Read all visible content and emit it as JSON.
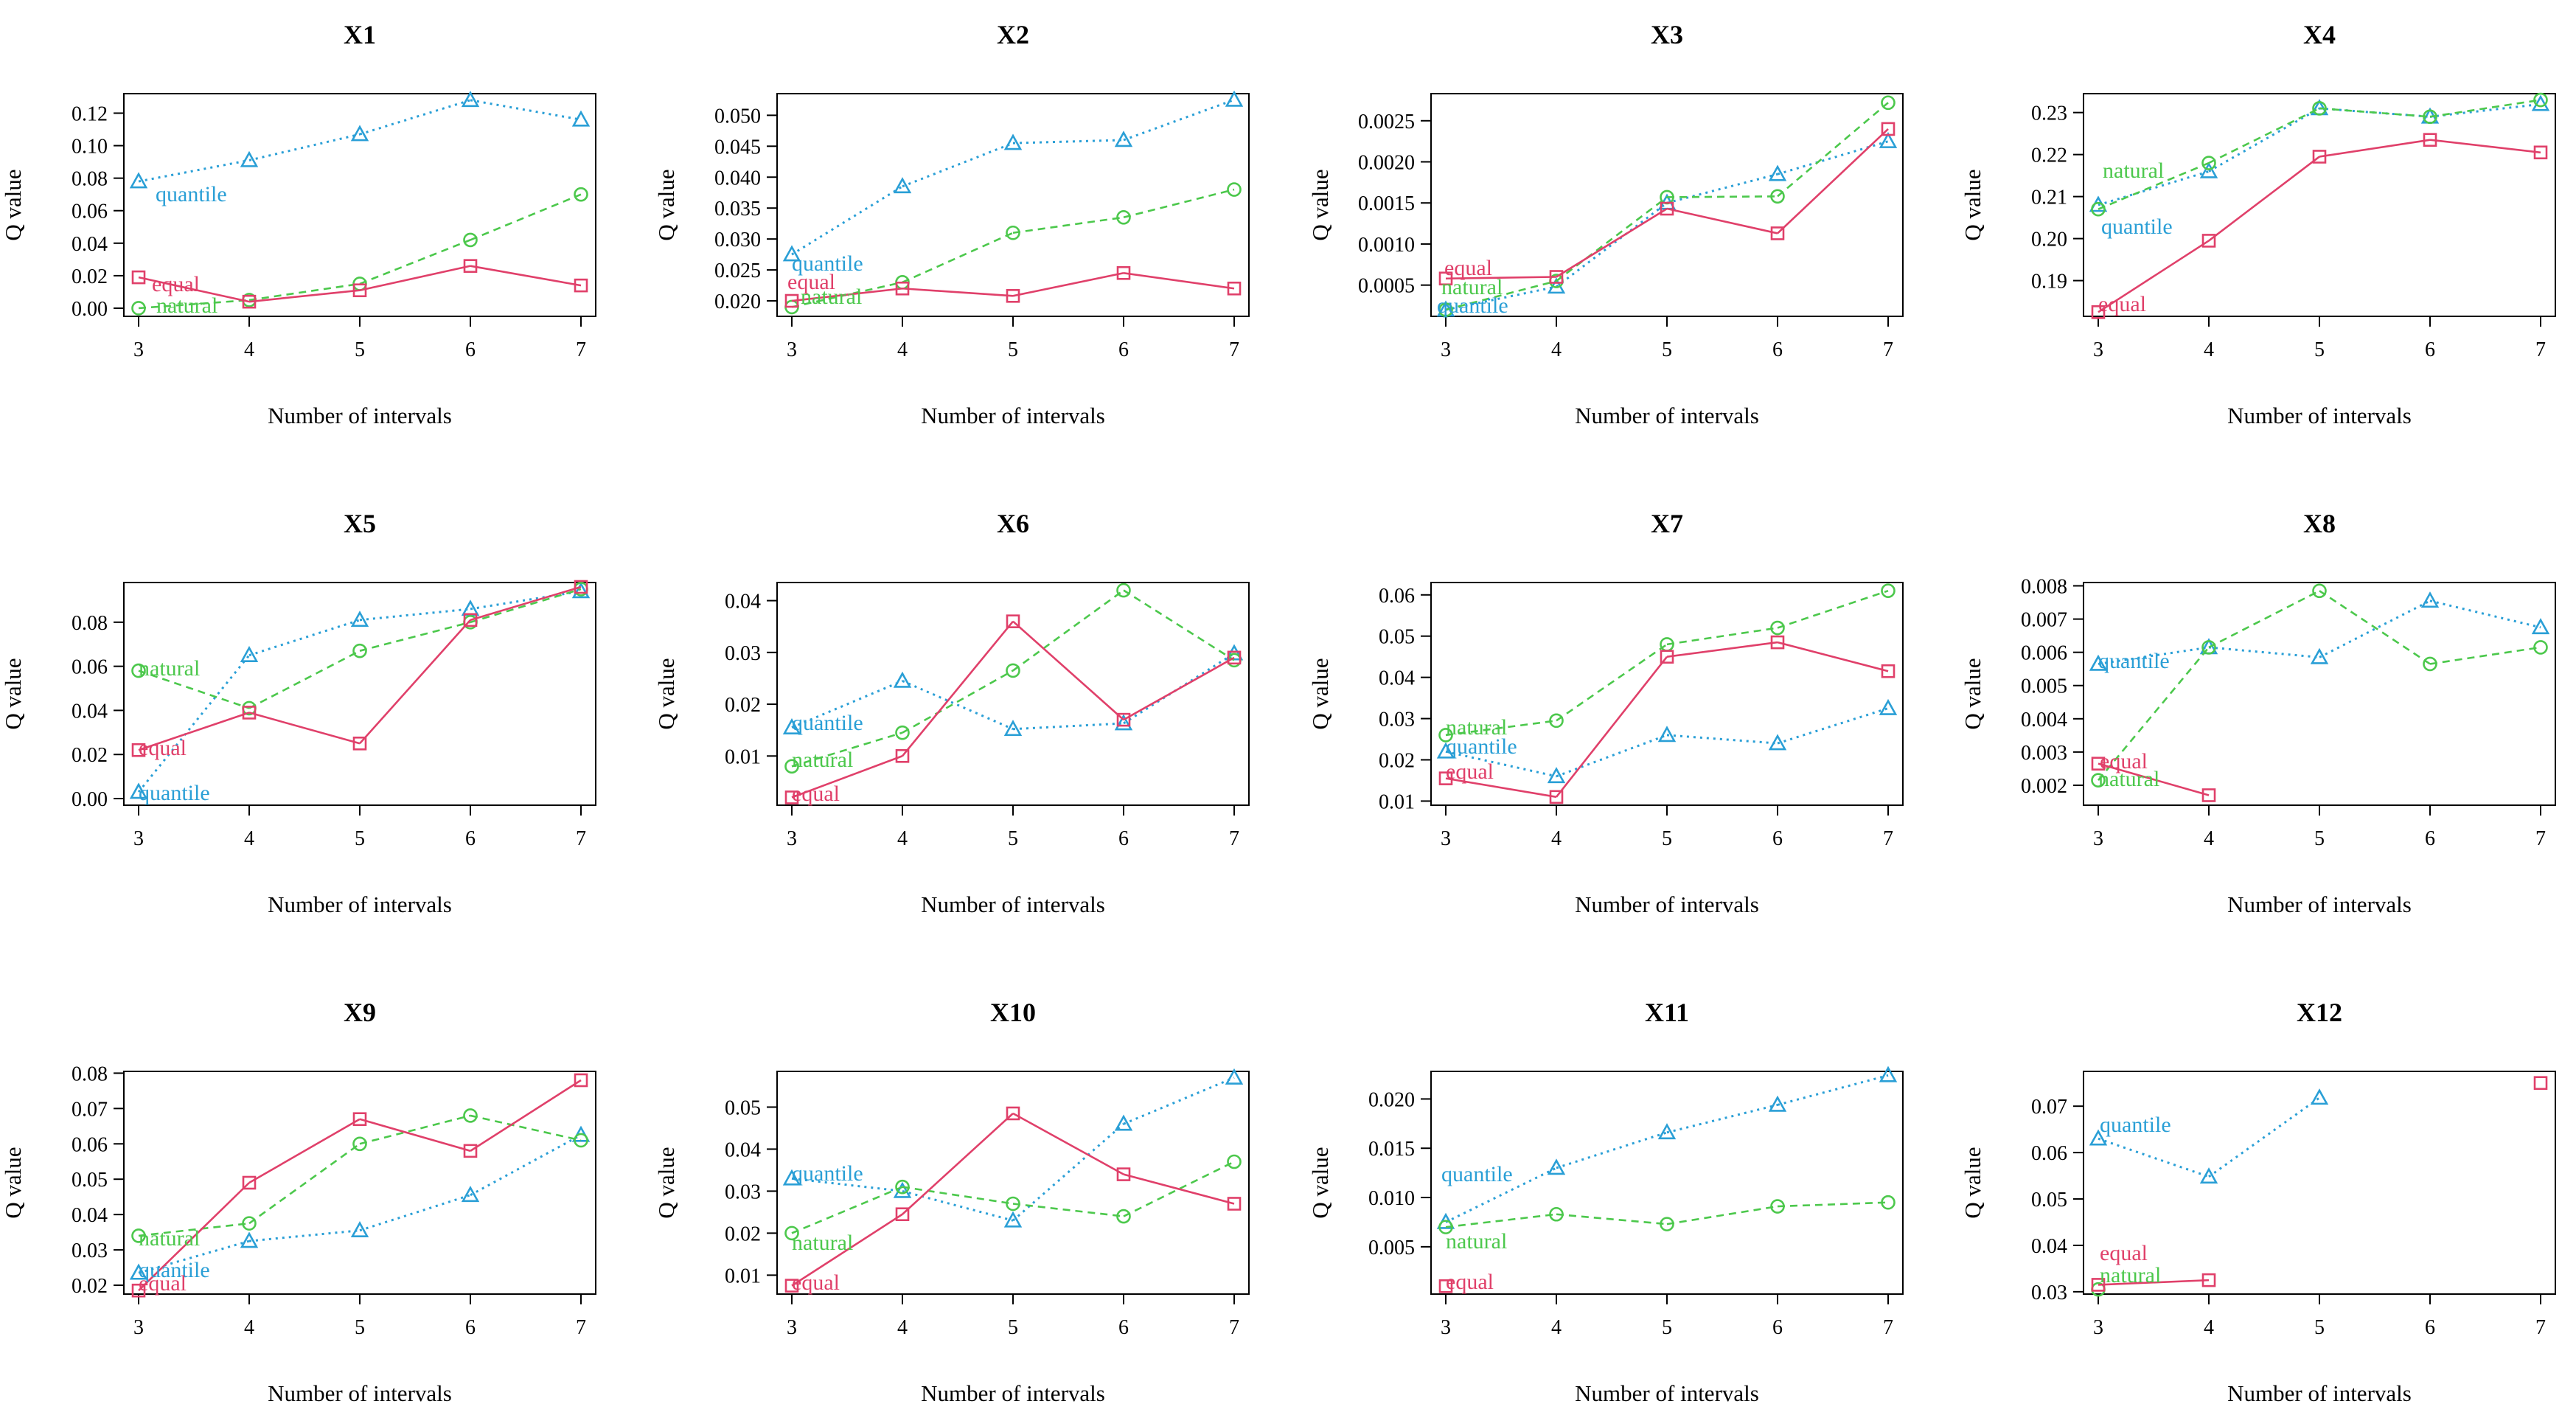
{
  "colors": {
    "equal": "#E0406A",
    "natural": "#4CC84C",
    "quantile": "#2A9FD6"
  },
  "series_names": [
    "equal",
    "natural",
    "quantile"
  ],
  "axis_common": {
    "xlabel": "Number of intervals",
    "ylabel": "Q value",
    "x": [
      3,
      4,
      5,
      6,
      7
    ]
  },
  "chart_data": [
    {
      "type": "line",
      "title": "X1",
      "xlabel": "Number of intervals",
      "ylabel": "Q value",
      "x": [
        3,
        4,
        5,
        6,
        7
      ],
      "ylim": [
        -0.005,
        0.132
      ],
      "yticks": [
        "0.00",
        "0.02",
        "0.04",
        "0.06",
        "0.08",
        "0.10",
        "0.12"
      ],
      "series": [
        {
          "name": "equal",
          "values": [
            0.019,
            0.004,
            0.011,
            0.026,
            0.014
          ]
        },
        {
          "name": "natural",
          "values": [
            0.0,
            0.005,
            0.015,
            0.042,
            0.07
          ]
        },
        {
          "name": "quantile",
          "values": [
            0.078,
            0.091,
            0.107,
            0.128,
            0.116
          ]
        }
      ]
    },
    {
      "type": "line",
      "title": "X2",
      "xlabel": "Number of intervals",
      "ylabel": "Q value",
      "x": [
        3,
        4,
        5,
        6,
        7
      ],
      "ylim": [
        0.0175,
        0.0535
      ],
      "yticks": [
        "0.020",
        "0.025",
        "0.030",
        "0.035",
        "0.040",
        "0.045",
        "0.050"
      ],
      "series": [
        {
          "name": "equal",
          "values": [
            0.02,
            0.022,
            0.0208,
            0.0245,
            0.022
          ]
        },
        {
          "name": "natural",
          "values": [
            0.019,
            0.023,
            0.031,
            0.0335,
            0.038
          ]
        },
        {
          "name": "quantile",
          "values": [
            0.0275,
            0.0385,
            0.0455,
            0.046,
            0.0525
          ]
        }
      ]
    },
    {
      "type": "line",
      "title": "X3",
      "xlabel": "Number of intervals",
      "ylabel": "Q value",
      "x": [
        3,
        4,
        5,
        6,
        7
      ],
      "ylim": [
        0.00012,
        0.00283
      ],
      "yticks": [
        "0.0005",
        "0.0010",
        "0.0015",
        "0.0020",
        "0.0025"
      ],
      "series": [
        {
          "name": "equal",
          "values": [
            0.00058,
            0.0006,
            0.00143,
            0.00113,
            0.0024
          ]
        },
        {
          "name": "natural",
          "values": [
            0.0002,
            0.00055,
            0.00157,
            0.00158,
            0.00272
          ]
        },
        {
          "name": "quantile",
          "values": [
            0.0002,
            0.00048,
            0.0015,
            0.00185,
            0.00225
          ]
        }
      ]
    },
    {
      "type": "line",
      "title": "X4",
      "xlabel": "Number of intervals",
      "ylabel": "Q value",
      "x": [
        3,
        4,
        5,
        6,
        7
      ],
      "ylim": [
        0.1815,
        0.2345
      ],
      "yticks": [
        "0.19",
        "0.20",
        "0.21",
        "0.22",
        "0.23"
      ],
      "series": [
        {
          "name": "equal",
          "values": [
            0.1825,
            0.1995,
            0.2195,
            0.2235,
            0.2205
          ]
        },
        {
          "name": "natural",
          "values": [
            0.207,
            0.218,
            0.231,
            0.229,
            0.233
          ]
        },
        {
          "name": "quantile",
          "values": [
            0.208,
            0.216,
            0.231,
            0.229,
            0.232
          ]
        }
      ]
    },
    {
      "type": "line",
      "title": "X5",
      "xlabel": "Number of intervals",
      "ylabel": "Q value",
      "x": [
        3,
        4,
        5,
        6,
        7
      ],
      "ylim": [
        -0.003,
        0.098
      ],
      "yticks": [
        "0.00",
        "0.02",
        "0.04",
        "0.06",
        "0.08"
      ],
      "series": [
        {
          "name": "equal",
          "values": [
            0.022,
            0.039,
            0.025,
            0.081,
            0.096
          ]
        },
        {
          "name": "natural",
          "values": [
            0.058,
            0.041,
            0.067,
            0.08,
            0.095
          ]
        },
        {
          "name": "quantile",
          "values": [
            0.003,
            0.065,
            0.081,
            0.086,
            0.094
          ]
        }
      ]
    },
    {
      "type": "line",
      "title": "X6",
      "xlabel": "Number of intervals",
      "ylabel": "Q value",
      "x": [
        3,
        4,
        5,
        6,
        7
      ],
      "ylim": [
        0.0005,
        0.0435
      ],
      "yticks": [
        "0.01",
        "0.02",
        "0.03",
        "0.04"
      ],
      "series": [
        {
          "name": "equal",
          "values": [
            0.002,
            0.01,
            0.036,
            0.017,
            0.029
          ]
        },
        {
          "name": "natural",
          "values": [
            0.008,
            0.0145,
            0.0265,
            0.042,
            0.0285
          ]
        },
        {
          "name": "quantile",
          "values": [
            0.0155,
            0.0245,
            0.0152,
            0.0163,
            0.0298
          ]
        }
      ]
    },
    {
      "type": "line",
      "title": "X7",
      "xlabel": "Number of intervals",
      "ylabel": "Q value",
      "x": [
        3,
        4,
        5,
        6,
        7
      ],
      "ylim": [
        0.009,
        0.063
      ],
      "yticks": [
        "0.01",
        "0.02",
        "0.03",
        "0.04",
        "0.05",
        "0.06"
      ],
      "series": [
        {
          "name": "equal",
          "values": [
            0.0155,
            0.011,
            0.045,
            0.0485,
            0.0415
          ]
        },
        {
          "name": "natural",
          "values": [
            0.026,
            0.0295,
            0.048,
            0.052,
            0.061
          ]
        },
        {
          "name": "quantile",
          "values": [
            0.022,
            0.016,
            0.026,
            0.024,
            0.0325
          ]
        }
      ]
    },
    {
      "type": "line",
      "title": "X8",
      "xlabel": "Number of intervals",
      "ylabel": "Q value",
      "x": [
        3,
        4,
        5,
        6,
        7
      ],
      "ylim": [
        0.0014,
        0.0081
      ],
      "yticks": [
        "0.002",
        "0.003",
        "0.004",
        "0.005",
        "0.006",
        "0.007",
        "0.008"
      ],
      "series": [
        {
          "name": "equal",
          "values": [
            0.00265,
            0.0017,
            null,
            null,
            null
          ]
        },
        {
          "name": "natural",
          "values": [
            0.00215,
            0.00615,
            0.00785,
            0.00565,
            0.00615
          ]
        },
        {
          "name": "quantile",
          "values": [
            0.00565,
            0.00615,
            0.00585,
            0.00755,
            0.00675
          ]
        }
      ]
    },
    {
      "type": "line",
      "title": "X9",
      "xlabel": "Number of intervals",
      "ylabel": "Q value",
      "x": [
        3,
        4,
        5,
        6,
        7
      ],
      "ylim": [
        0.0175,
        0.0805
      ],
      "yticks": [
        "0.02",
        "0.03",
        "0.04",
        "0.05",
        "0.06",
        "0.07",
        "0.08"
      ],
      "series": [
        {
          "name": "equal",
          "values": [
            0.0185,
            0.049,
            0.067,
            0.058,
            0.078
          ]
        },
        {
          "name": "natural",
          "values": [
            0.034,
            0.0375,
            0.06,
            0.068,
            0.061
          ]
        },
        {
          "name": "quantile",
          "values": [
            0.0235,
            0.0325,
            0.0355,
            0.0455,
            0.0625
          ]
        }
      ]
    },
    {
      "type": "line",
      "title": "X10",
      "xlabel": "Number of intervals",
      "ylabel": "Q value",
      "x": [
        3,
        4,
        5,
        6,
        7
      ],
      "ylim": [
        0.0055,
        0.0585
      ],
      "yticks": [
        "0.01",
        "0.02",
        "0.03",
        "0.04",
        "0.05"
      ],
      "series": [
        {
          "name": "equal",
          "values": [
            0.0075,
            0.0245,
            0.0485,
            0.034,
            0.027
          ]
        },
        {
          "name": "natural",
          "values": [
            0.02,
            0.031,
            0.027,
            0.024,
            0.037
          ]
        },
        {
          "name": "quantile",
          "values": [
            0.033,
            0.03,
            0.023,
            0.046,
            0.057
          ]
        }
      ]
    },
    {
      "type": "line",
      "title": "X11",
      "xlabel": "Number of intervals",
      "ylabel": "Q value",
      "x": [
        3,
        4,
        5,
        6,
        7
      ],
      "ylim": [
        0.0002,
        0.0228
      ],
      "yticks": [
        "0.005",
        "0.010",
        "0.015",
        "0.020"
      ],
      "series": [
        {
          "name": "equal",
          "values": [
            0.001,
            null,
            null,
            null,
            null
          ]
        },
        {
          "name": "natural",
          "values": [
            0.007,
            0.0083,
            0.0073,
            0.0091,
            0.0095
          ]
        },
        {
          "name": "quantile",
          "values": [
            0.0075,
            0.013,
            0.0166,
            0.0194,
            0.0224
          ]
        }
      ]
    },
    {
      "type": "line",
      "title": "X12",
      "xlabel": "Number of intervals",
      "ylabel": "Q value",
      "x": [
        3,
        4,
        5,
        6,
        7
      ],
      "ylim": [
        0.0295,
        0.0775
      ],
      "yticks": [
        "0.03",
        "0.04",
        "0.05",
        "0.06",
        "0.07"
      ],
      "series": [
        {
          "name": "equal",
          "values": [
            0.0315,
            0.0325,
            null,
            null,
            0.075
          ]
        },
        {
          "name": "natural",
          "values": [
            0.0305,
            null,
            null,
            null,
            null
          ]
        },
        {
          "name": "quantile",
          "values": [
            0.063,
            0.0548,
            0.0718,
            null,
            null
          ]
        }
      ]
    }
  ],
  "series_labels": [
    [
      {
        "series": "quantile",
        "text": "quantile"
      },
      {
        "series": "equal",
        "text": "equal"
      },
      {
        "series": "natural",
        "text": "natural"
      }
    ],
    [
      {
        "series": "quantile",
        "text": "quantile"
      },
      {
        "series": "equal",
        "text": "equal"
      },
      {
        "series": "natural",
        "text": "natural"
      }
    ],
    [
      {
        "series": "equal",
        "text": "equal"
      },
      {
        "series": "natural",
        "text": "natural"
      },
      {
        "series": "quantile",
        "text": "quantile"
      }
    ],
    [
      {
        "series": "natural",
        "text": "natural"
      },
      {
        "series": "quantile",
        "text": "quantile"
      },
      {
        "series": "equal",
        "text": "equal"
      }
    ],
    [
      {
        "series": "natural",
        "text": "natural"
      },
      {
        "series": "equal",
        "text": "equal"
      },
      {
        "series": "quantile",
        "text": "quantile"
      }
    ],
    [
      {
        "series": "quantile",
        "text": "quantile"
      },
      {
        "series": "natural",
        "text": "natural"
      },
      {
        "series": "equal",
        "text": "equal"
      }
    ],
    [
      {
        "series": "natural",
        "text": "natural"
      },
      {
        "series": "quantile",
        "text": "quantile"
      },
      {
        "series": "equal",
        "text": "equal"
      }
    ],
    [
      {
        "series": "quantile",
        "text": "quantile"
      },
      {
        "series": "equal",
        "text": "equal"
      },
      {
        "series": "natural",
        "text": "natural"
      }
    ],
    [
      {
        "series": "natural",
        "text": "natural"
      },
      {
        "series": "quantile",
        "text": "quantile"
      },
      {
        "series": "equal",
        "text": "equal"
      }
    ],
    [
      {
        "series": "quantile",
        "text": "quantile"
      },
      {
        "series": "natural",
        "text": "natural"
      },
      {
        "series": "equal",
        "text": "equal"
      }
    ],
    [
      {
        "series": "quantile",
        "text": "quantile"
      },
      {
        "series": "natural",
        "text": "natural"
      },
      {
        "series": "equal",
        "text": "equal"
      }
    ],
    [
      {
        "series": "quantile",
        "text": "quantile"
      },
      {
        "series": "equal",
        "text": "equal"
      },
      {
        "series": "natural",
        "text": "natural"
      }
    ]
  ]
}
